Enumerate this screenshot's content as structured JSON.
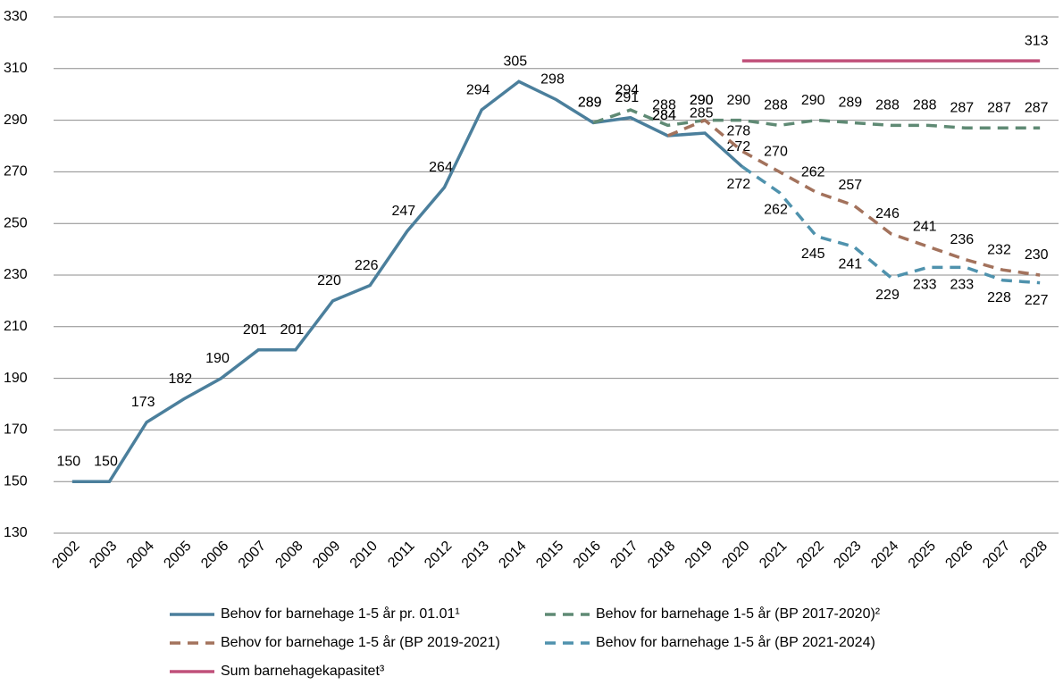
{
  "chart_data": {
    "type": "line",
    "categories": [
      "2002",
      "2003",
      "2004",
      "2005",
      "2006",
      "2007",
      "2008",
      "2009",
      "2010",
      "2011",
      "2012",
      "2013",
      "2014",
      "2015",
      "2016",
      "2017",
      "2018",
      "2019",
      "2020",
      "2021",
      "2022",
      "2023",
      "2024",
      "2025",
      "2026",
      "2027",
      "2028"
    ],
    "ylim": [
      130,
      330
    ],
    "yticks": [
      130,
      150,
      170,
      190,
      210,
      230,
      250,
      270,
      290,
      310,
      330
    ],
    "grid": true,
    "series": [
      {
        "name": "Behov for barnehage 1-5 år pr. 01.01¹",
        "color": "#4b7f9c",
        "dashed": false,
        "label_side": "above",
        "values": [
          150,
          150,
          173,
          182,
          190,
          201,
          201,
          220,
          226,
          247,
          264,
          294,
          305,
          298,
          289,
          291,
          284,
          285,
          272,
          null,
          null,
          null,
          null,
          null,
          null,
          null,
          null
        ]
      },
      {
        "name": "Behov for barnehage 1-5 år (BP 2017-2020)²",
        "color": "#5f8a74",
        "dashed": true,
        "label_side": "above",
        "values": [
          null,
          null,
          null,
          null,
          null,
          null,
          null,
          null,
          null,
          null,
          null,
          null,
          null,
          null,
          289,
          294,
          288,
          290,
          290,
          288,
          290,
          289,
          288,
          288,
          287,
          287,
          287
        ]
      },
      {
        "name": "Behov for barnehage 1-5 år (BP 2019-2021)",
        "color": "#a3725c",
        "dashed": true,
        "label_side": "above",
        "values": [
          null,
          null,
          null,
          null,
          null,
          null,
          null,
          null,
          null,
          null,
          null,
          null,
          null,
          null,
          null,
          null,
          284,
          290,
          278,
          270,
          262,
          257,
          246,
          241,
          236,
          232,
          230
        ]
      },
      {
        "name": "Behov for barnehage 1-5 år (BP 2021-2024)",
        "color": "#4f92ad",
        "dashed": true,
        "label_side": "below",
        "values": [
          null,
          null,
          null,
          null,
          null,
          null,
          null,
          null,
          null,
          null,
          null,
          null,
          null,
          null,
          null,
          null,
          null,
          null,
          272,
          262,
          245,
          241,
          229,
          233,
          233,
          228,
          227
        ]
      },
      {
        "name": "Sum barnehagekapasitet³",
        "color": "#c0507a",
        "dashed": false,
        "label_side": "above",
        "values": [
          null,
          null,
          null,
          null,
          null,
          null,
          null,
          null,
          null,
          null,
          null,
          null,
          null,
          null,
          null,
          null,
          null,
          null,
          313,
          313,
          313,
          313,
          313,
          313,
          313,
          313,
          313
        ],
        "value_labels": [
          null,
          null,
          null,
          null,
          null,
          null,
          null,
          null,
          null,
          null,
          null,
          null,
          null,
          null,
          null,
          null,
          null,
          null,
          null,
          null,
          null,
          null,
          null,
          null,
          null,
          null,
          "313"
        ]
      }
    ]
  }
}
